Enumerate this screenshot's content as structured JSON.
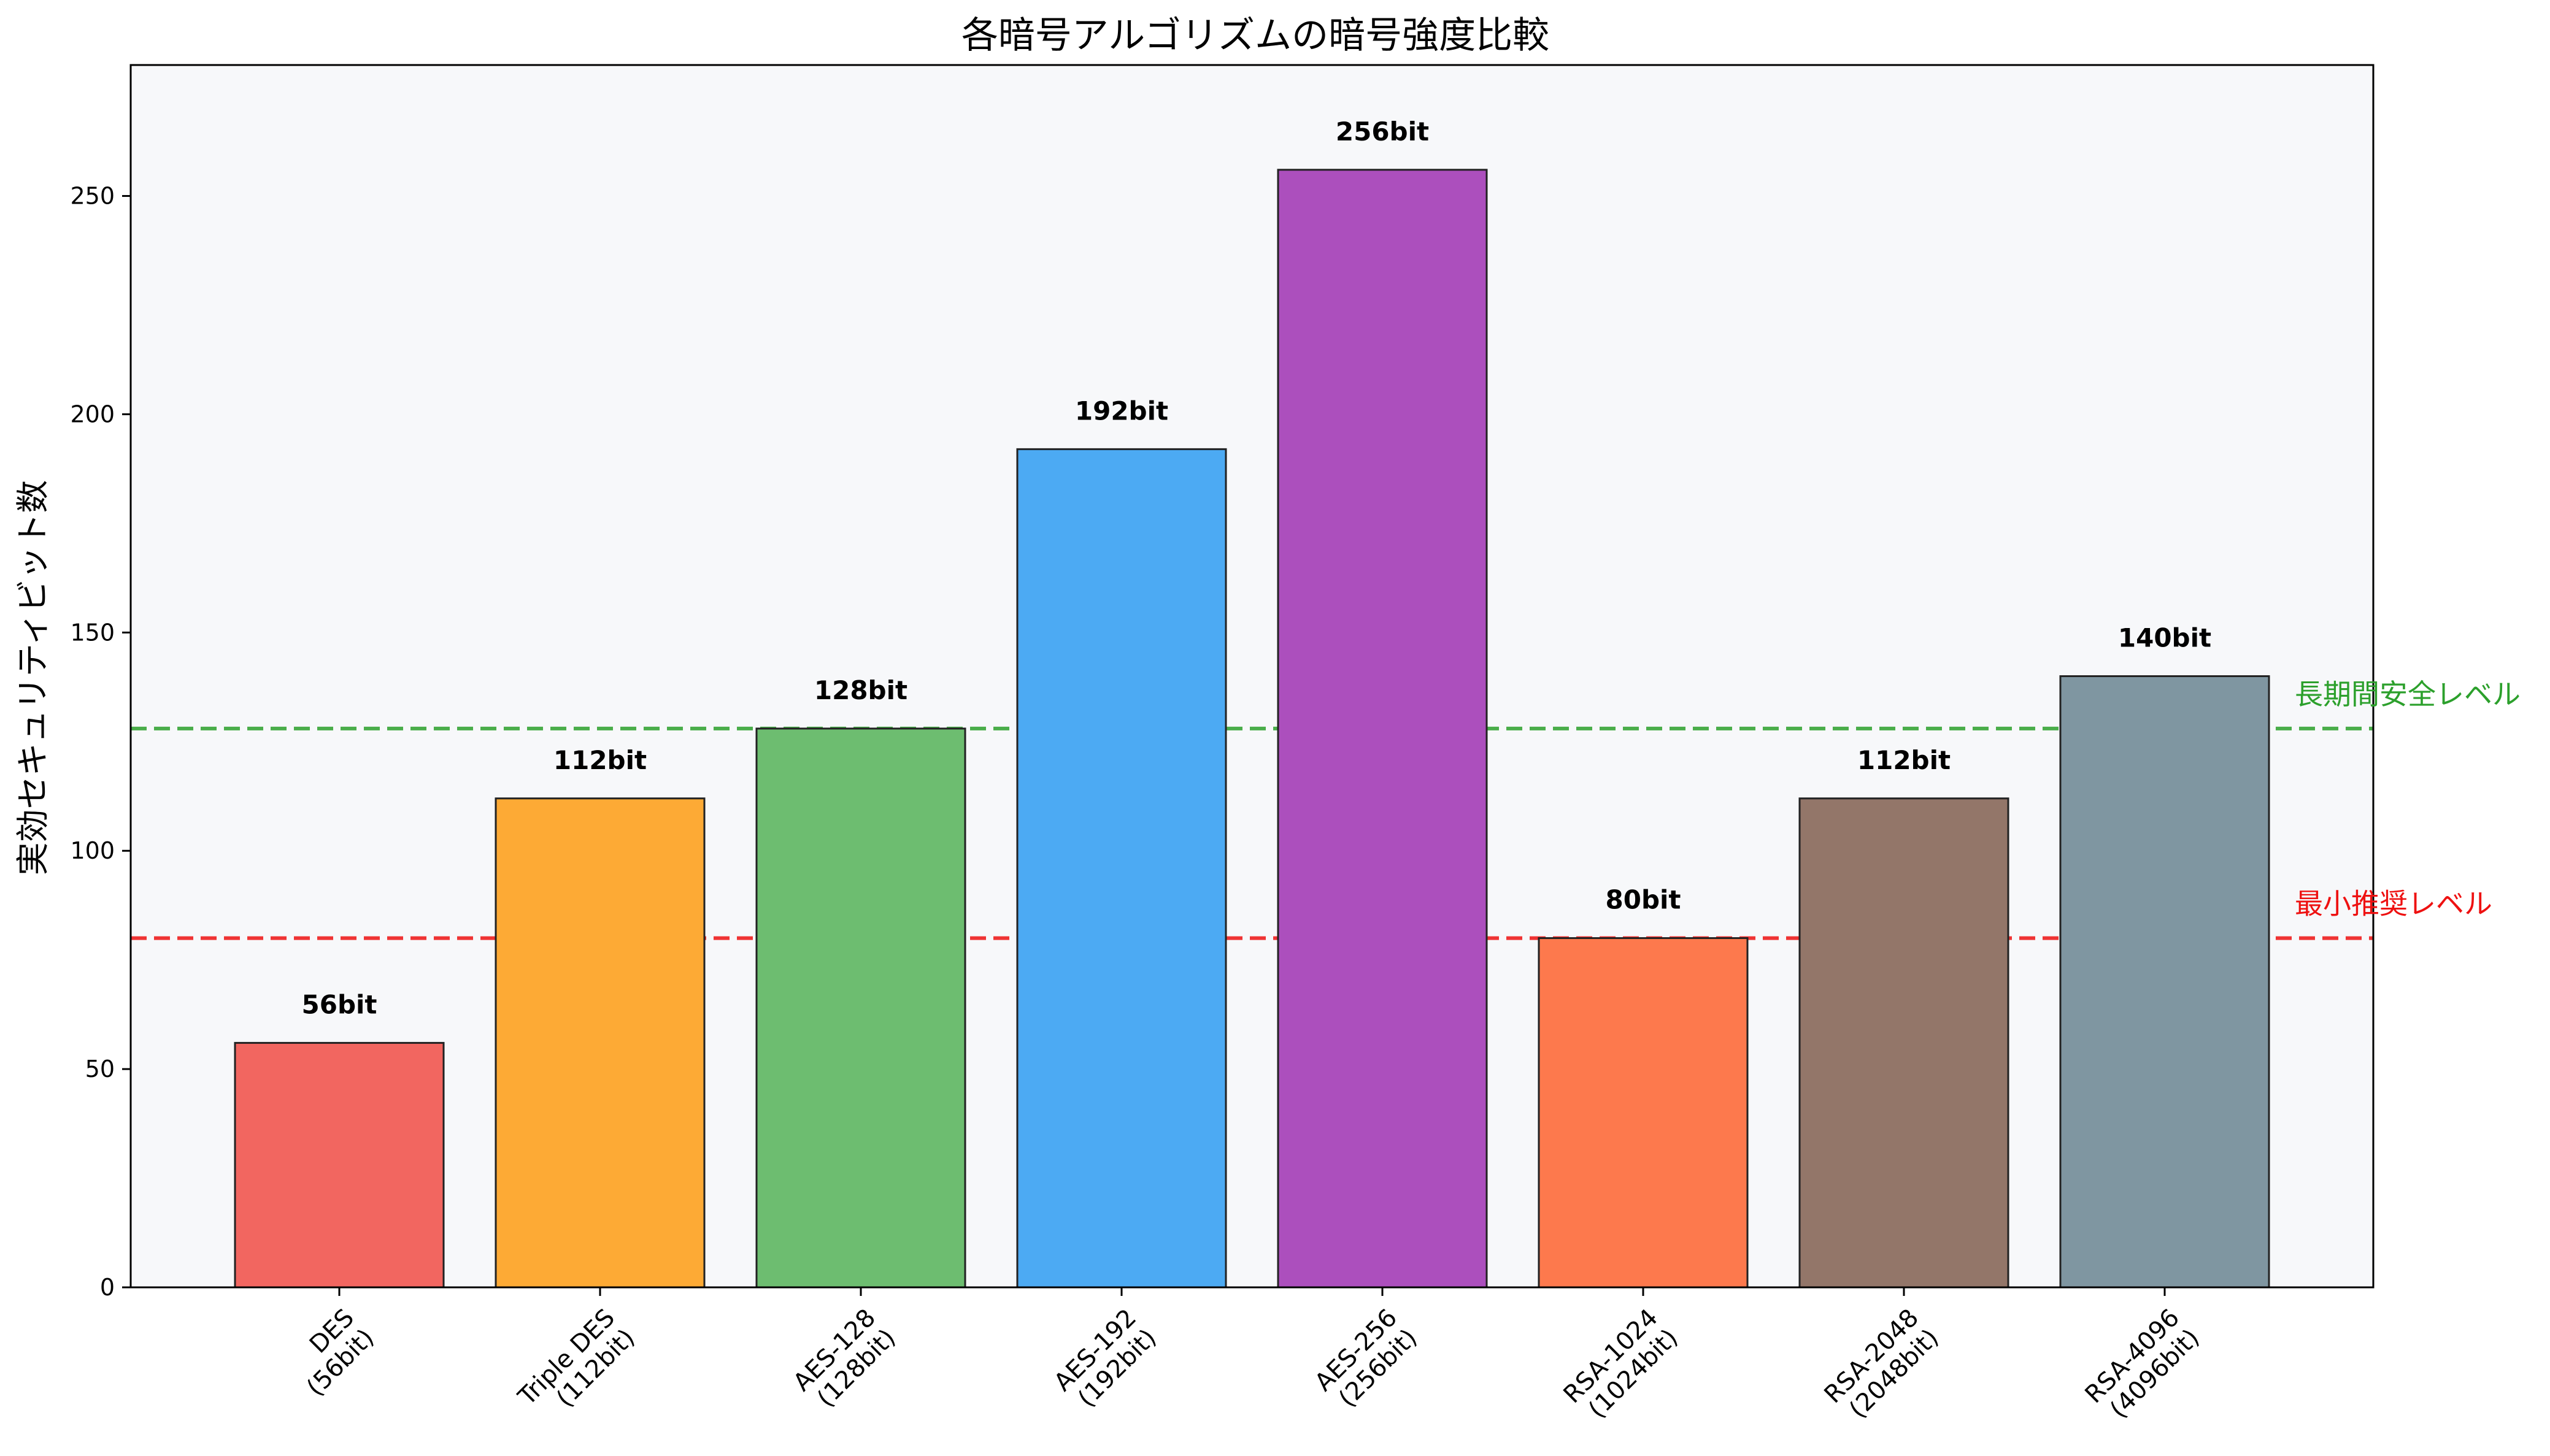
{
  "chart_data": {
    "type": "bar",
    "title": "各暗号アルゴリズムの暗号強度比較",
    "xlabel": "",
    "ylabel": "実効セキュリティビット数",
    "ylim": [
      0,
      280
    ],
    "yticks": [
      0,
      50,
      100,
      150,
      200,
      250
    ],
    "grid": false,
    "categories": [
      {
        "line1": "DES",
        "line2": "(56bit)"
      },
      {
        "line1": "Triple DES",
        "line2": "(112bit)"
      },
      {
        "line1": "AES-128",
        "line2": "(128bit)"
      },
      {
        "line1": "AES-192",
        "line2": "(192bit)"
      },
      {
        "line1": "AES-256",
        "line2": "(256bit)"
      },
      {
        "line1": "RSA-1024",
        "line2": "(1024bit)"
      },
      {
        "line1": "RSA-2048",
        "line2": "(2048bit)"
      },
      {
        "line1": "RSA-4096",
        "line2": "(4096bit)"
      }
    ],
    "values": [
      56,
      112,
      128,
      192,
      256,
      80,
      112,
      140
    ],
    "data_labels": [
      "56bit",
      "112bit",
      "128bit",
      "192bit",
      "256bit",
      "80bit",
      "112bit",
      "140bit"
    ],
    "bar_colors": [
      "#f26660",
      "#fdaa35",
      "#6dbd70",
      "#4caaf3",
      "#ac4fbd",
      "#fd794d",
      "#937669",
      "#7f96a1"
    ],
    "reference_lines": [
      {
        "value": 128,
        "label": "長期間安全レベル",
        "color": "#2ca02c"
      },
      {
        "value": 80,
        "label": "最小推奨レベル",
        "color": "#ee1111"
      }
    ],
    "plot_background": "#f7f8fa"
  }
}
